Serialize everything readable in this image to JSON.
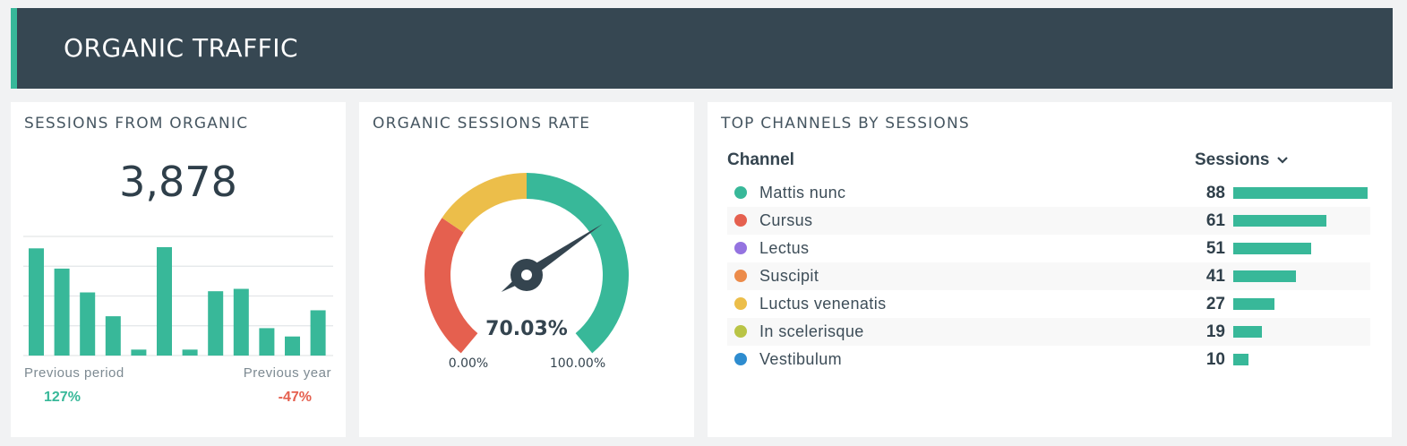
{
  "header": {
    "title": "ORGANIC TRAFFIC"
  },
  "colors": {
    "accent": "#38b899",
    "negative": "#e5604f",
    "warning": "#ecbe4a",
    "header_bg": "#364752"
  },
  "sessions_card": {
    "title": "SESSIONS FROM ORGANIC",
    "value": "3,878",
    "previous_period_label": "Previous period",
    "previous_period_value": "127%",
    "previous_year_label": "Previous year",
    "previous_year_value": "-47%",
    "chart_data": {
      "type": "bar",
      "values": [
        90,
        73,
        53,
        33,
        5,
        91,
        5,
        54,
        56,
        23,
        16,
        38
      ],
      "ylim": [
        0,
        100
      ],
      "grid": true
    }
  },
  "rate_card": {
    "title": "ORGANIC SESSIONS RATE",
    "value": "70.03%",
    "value_fraction": 0.7003,
    "min_label": "0.00%",
    "max_label": "100.00%",
    "zones": [
      {
        "color": "#e5604f",
        "from": 0,
        "to": 0.3
      },
      {
        "color": "#ecbe4a",
        "from": 0.3,
        "to": 0.5
      },
      {
        "color": "#38b899",
        "from": 0.5,
        "to": 1
      }
    ]
  },
  "channels_card": {
    "title": "TOP CHANNELS BY SESSIONS",
    "col_channel": "Channel",
    "col_sessions": "Sessions",
    "sort_icon": "chevron-down-icon",
    "max_value": 88,
    "rows": [
      {
        "label": "Mattis nunc",
        "value": "88",
        "color": "#38b899"
      },
      {
        "label": "Cursus",
        "value": "61",
        "color": "#e5604f"
      },
      {
        "label": "Lectus",
        "value": "51",
        "color": "#9473e0"
      },
      {
        "label": "Suscipit",
        "value": "41",
        "color": "#ec8b4a"
      },
      {
        "label": "Luctus venenatis",
        "value": "27",
        "color": "#ecbe4a"
      },
      {
        "label": "In scelerisque",
        "value": "19",
        "color": "#b9c446"
      },
      {
        "label": "Vestibulum",
        "value": "10",
        "color": "#2e8ccf"
      }
    ]
  }
}
